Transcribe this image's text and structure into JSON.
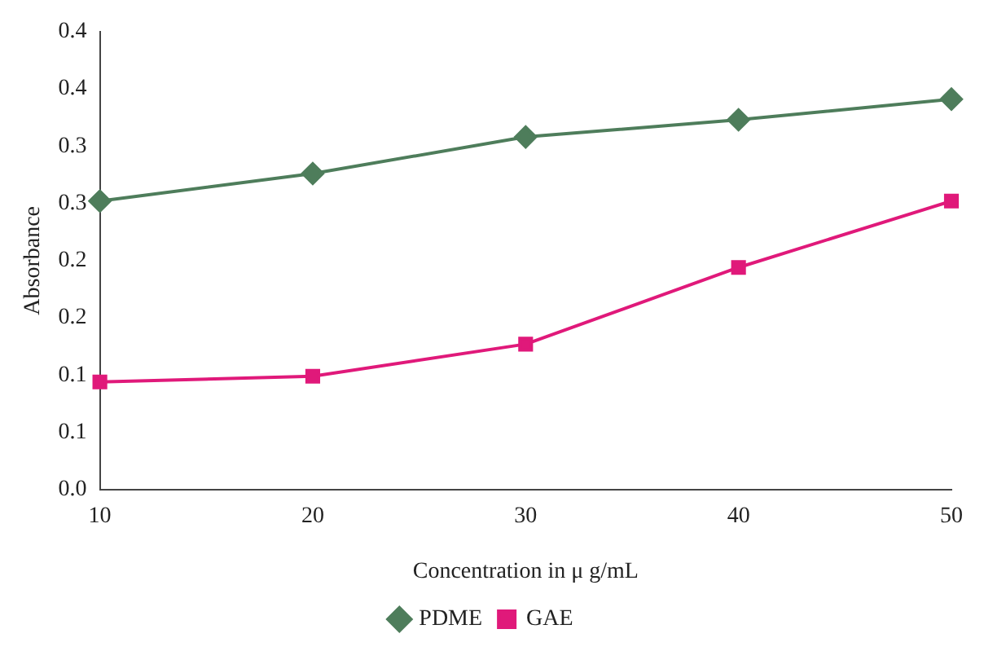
{
  "chart_data": {
    "type": "line",
    "xlabel": "Concentration in μ g/mL",
    "ylabel": "Absorbance",
    "x": [
      10,
      20,
      30,
      40,
      50
    ],
    "xlim": [
      10,
      50
    ],
    "xticks": [
      10,
      20,
      30,
      40,
      50
    ],
    "ylim": [
      0,
      0.4
    ],
    "yticks": [
      {
        "value": 0,
        "label": "0.0"
      },
      {
        "value": 0.05,
        "label": "0.1"
      },
      {
        "value": 0.1,
        "label": "0.1"
      },
      {
        "value": 0.15,
        "label": "0.2"
      },
      {
        "value": 0.2,
        "label": "0.2"
      },
      {
        "value": 0.25,
        "label": "0.3"
      },
      {
        "value": 0.3,
        "label": "0.3"
      },
      {
        "value": 0.35,
        "label": "0.4"
      },
      {
        "value": 0.4,
        "label": "0.4"
      }
    ],
    "grid": false,
    "legend": "bottom",
    "line_style": "solid",
    "series": [
      {
        "name": "PDME",
        "color": "#4e7d5b",
        "marker": "diamond",
        "values": [
          0.252,
          0.276,
          0.308,
          0.323,
          0.341
        ]
      },
      {
        "name": "GAE",
        "color": "#e0197a",
        "marker": "square",
        "values": [
          0.094,
          0.099,
          0.127,
          0.194,
          0.252
        ]
      }
    ]
  }
}
